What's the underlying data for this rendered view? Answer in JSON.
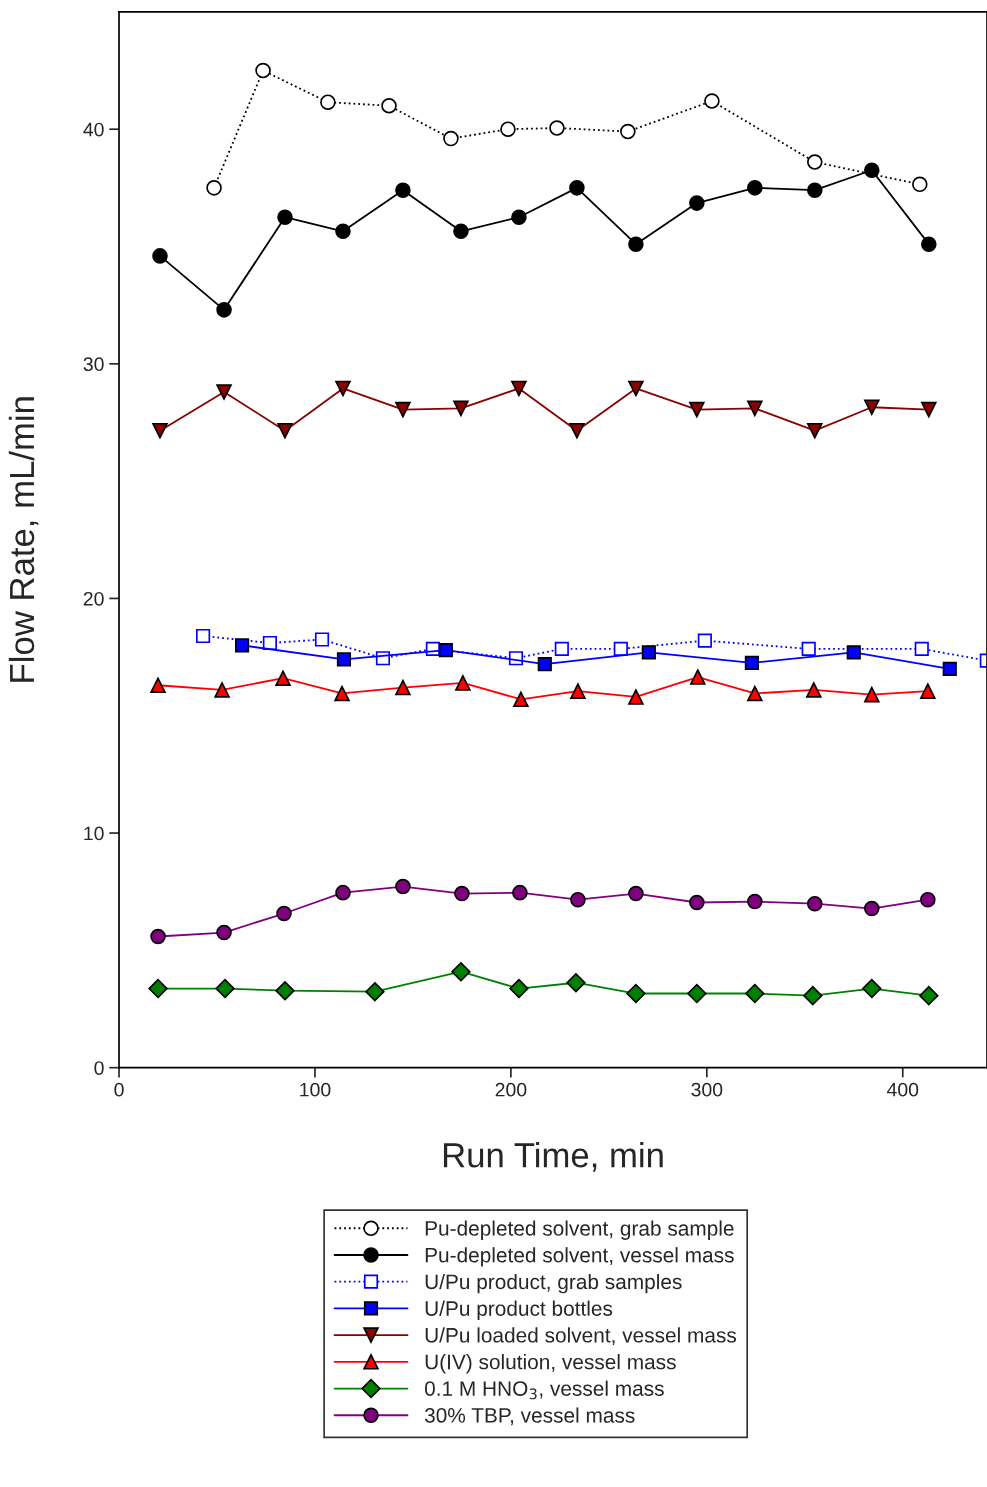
{
  "chart_data": {
    "type": "line",
    "xlabel": "Run Time, min",
    "ylabel": "Flow Rate, mL/min",
    "xlim": [
      0,
      443
    ],
    "xticks": [
      0,
      100,
      200,
      300,
      400
    ],
    "ylim": [
      0,
      45
    ],
    "yticks": [
      0,
      10,
      20,
      30,
      40
    ],
    "grid": false,
    "legend": "bottom",
    "series": [
      {
        "name": "Pu-depleted solvent, grab sample",
        "color": "#000000",
        "marker": "circle",
        "line_style": "dotted",
        "x": [
          48.5,
          73.5,
          106.6,
          137.8,
          169.4,
          198.5,
          223.5,
          259.7,
          302.6,
          355.1,
          408.7
        ],
        "values": [
          37.5,
          42.5,
          41.15,
          41.0,
          39.6,
          40.0,
          40.05,
          39.9,
          41.2,
          38.6,
          37.65
        ]
      },
      {
        "name": "Pu-depleted solvent, vessel mass",
        "color": "#000000",
        "marker": "circle",
        "line_style": "solid",
        "x": [
          20.9,
          53.6,
          84.7,
          114.3,
          144.9,
          174.5,
          204.1,
          233.7,
          263.8,
          294.9,
          324.5,
          355.1,
          384.2,
          413.3
        ],
        "values": [
          34.6,
          32.3,
          36.25,
          35.65,
          37.4,
          35.65,
          36.25,
          37.5,
          35.1,
          36.85,
          37.5,
          37.4,
          38.25,
          35.1
        ]
      },
      {
        "name": "U/Pu product, grab samples",
        "color": "#0000ff",
        "marker": "square",
        "line_style": "dotted",
        "x": [
          42.9,
          77.0,
          103.6,
          134.7,
          160.2,
          202.6,
          226.0,
          256.1,
          299.0,
          352.0,
          409.7,
          442.9
        ],
        "values": [
          18.4,
          18.1,
          18.25,
          17.45,
          17.85,
          17.45,
          17.85,
          17.85,
          18.2,
          17.85,
          17.85,
          17.35
        ]
      },
      {
        "name": "U/Pu product bottles",
        "color": "#0000ff",
        "marker": "square",
        "line_style": "solid",
        "x": [
          62.8,
          114.8,
          166.8,
          217.3,
          270.4,
          323.0,
          375.0,
          424.0
        ],
        "values": [
          18.0,
          17.4,
          17.8,
          17.2,
          17.7,
          17.25,
          17.7,
          17.0
        ]
      },
      {
        "name": "U/Pu loaded solvent, vessel mass",
        "color": "#8b0000",
        "marker": "triangle_down",
        "line_style": "solid",
        "x": [
          20.9,
          53.6,
          84.7,
          114.3,
          144.9,
          174.5,
          204.1,
          233.7,
          263.8,
          294.9,
          324.5,
          355.1,
          384.2,
          413.3
        ],
        "values": [
          27.15,
          28.8,
          27.15,
          28.95,
          28.05,
          28.1,
          28.95,
          27.15,
          28.95,
          28.05,
          28.1,
          27.15,
          28.15,
          28.05
        ]
      },
      {
        "name": "U(IV) solution, vessel mass",
        "color": "#ff0000",
        "marker": "triangle",
        "line_style": "solid",
        "x": [
          19.9,
          52.6,
          83.7,
          113.8,
          144.9,
          175.5,
          205.1,
          234.2,
          263.8,
          295.4,
          324.5,
          354.6,
          384.2,
          412.8
        ],
        "values": [
          16.3,
          16.1,
          16.6,
          15.95,
          16.2,
          16.4,
          15.7,
          16.05,
          15.8,
          16.65,
          15.95,
          16.1,
          15.9,
          16.05
        ]
      },
      {
        "name": "0.1 M HNO$_{3}$, vessel mass",
        "color": "#008000",
        "marker": "diamond",
        "line_style": "solid",
        "x": [
          19.9,
          54.1,
          84.7,
          130.6,
          174.5,
          204.1,
          233.2,
          263.8,
          294.9,
          324.5,
          354.1,
          384.2,
          413.3
        ],
        "values": [
          3.37,
          3.37,
          3.28,
          3.24,
          4.09,
          3.37,
          3.62,
          3.16,
          3.16,
          3.16,
          3.07,
          3.37,
          3.07
        ]
      },
      {
        "name": "30% TBP, vessel mass",
        "color": "#800080",
        "marker": "circle",
        "line_style": "solid",
        "x": [
          19.9,
          53.6,
          84.2,
          114.3,
          144.9,
          175.0,
          204.6,
          234.2,
          263.8,
          294.9,
          324.5,
          355.1,
          384.2,
          412.8
        ],
        "values": [
          5.59,
          5.76,
          6.57,
          7.46,
          7.72,
          7.42,
          7.46,
          7.16,
          7.42,
          7.04,
          7.08,
          6.99,
          6.78,
          7.16
        ]
      }
    ]
  }
}
